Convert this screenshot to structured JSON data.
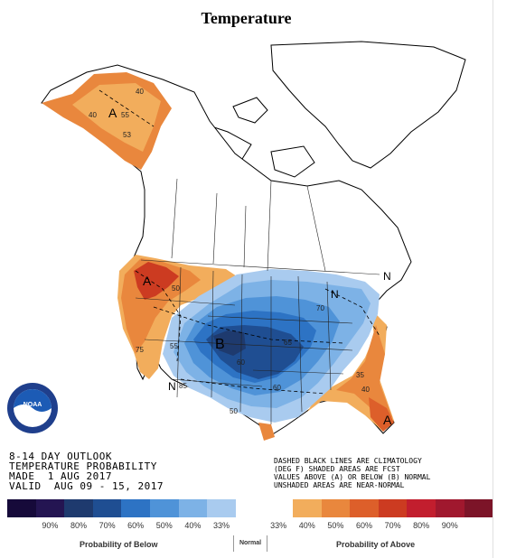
{
  "header": {
    "title": "Temperature"
  },
  "outlook_text": {
    "line1": "8-14 DAY OUTLOOK",
    "line2": "TEMPERATURE PROBABILITY",
    "line3": "MADE  1 AUG 2017",
    "line4": "VALID  AUG 09 - 15, 2017"
  },
  "note_text": {
    "line1": "DASHED BLACK LINES ARE CLIMATOLOGY",
    "line2": "(DEG F) SHADED AREAS ARE FCST",
    "line3": "VALUES ABOVE (A) OR BELOW (B) NORMAL",
    "line4": "UNSHADED AREAS ARE NEAR-NORMAL"
  },
  "logo": {
    "text": "NOAA"
  },
  "map_labels": {
    "above_a": "A",
    "below_b": "B",
    "normal_n": "N",
    "contours": [
      "40",
      "55",
      "53",
      "40",
      "50",
      "75",
      "85",
      "60",
      "50",
      "70",
      "60",
      "65",
      "55",
      "35",
      "40"
    ]
  },
  "legend": {
    "swatches": [
      {
        "color": "#160a3a"
      },
      {
        "color": "#241552"
      },
      {
        "color": "#1e3a6e"
      },
      {
        "color": "#1f4e92"
      },
      {
        "color": "#2d73c4"
      },
      {
        "color": "#4f93d8"
      },
      {
        "color": "#7db2e6"
      },
      {
        "color": "#a9cbef"
      },
      {
        "color": "#ffffff"
      },
      {
        "color": "#ffffff"
      },
      {
        "color": "#f2ad5c"
      },
      {
        "color": "#e9873d"
      },
      {
        "color": "#dd5f2a"
      },
      {
        "color": "#cc3b21"
      },
      {
        "color": "#c21e2e"
      },
      {
        "color": "#a0182e"
      },
      {
        "color": "#7c1428"
      }
    ],
    "labels": [
      "90%",
      "80%",
      "70%",
      "60%",
      "50%",
      "40%",
      "33%",
      "33%",
      "40%",
      "50%",
      "60%",
      "70%",
      "80%",
      "90%"
    ],
    "below_label": "Probability of Below",
    "normal_label": "Normal",
    "above_label": "Probability of Above"
  }
}
